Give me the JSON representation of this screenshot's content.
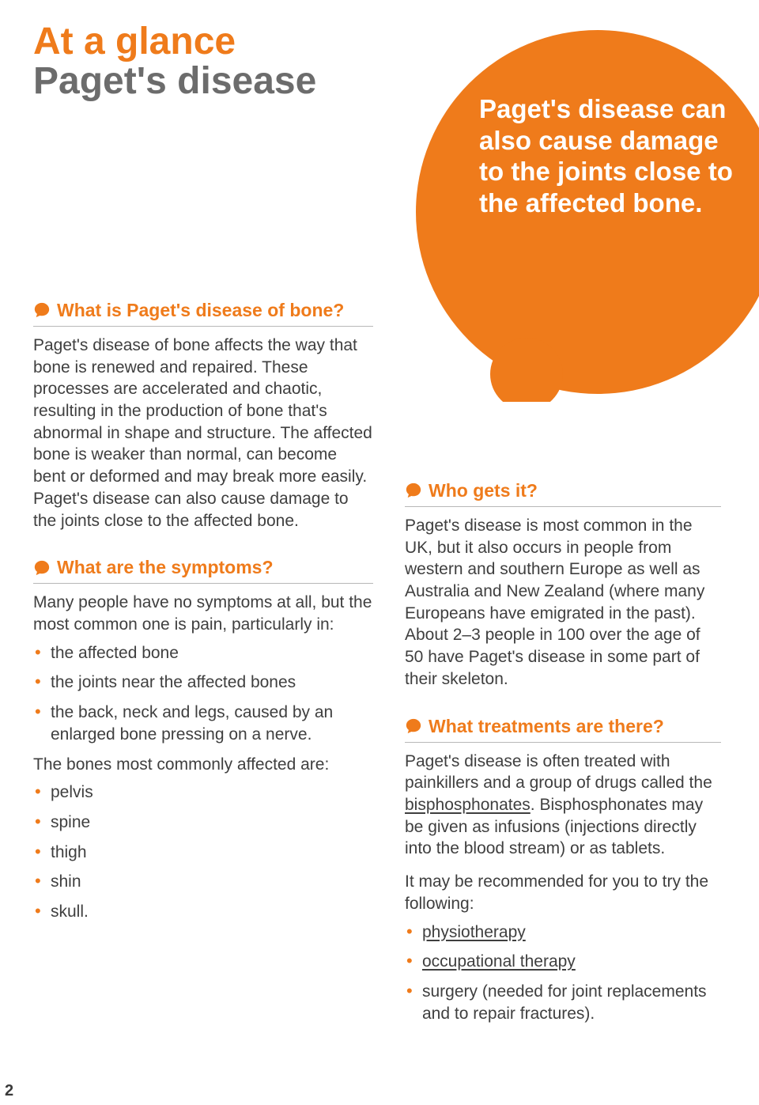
{
  "colors": {
    "accent": "#ef7b1b",
    "heading_gray": "#6c6c6c",
    "body_text": "#3f3f3f",
    "bullet": "#ef7b1b",
    "rule": "#b8b8b8",
    "callout_bg": "#ef7b1b",
    "callout_text": "#ffffff",
    "background": "#ffffff"
  },
  "typography": {
    "title_fontsize": 48,
    "heading_fontsize": 23,
    "body_fontsize": 21,
    "callout_fontsize": 33,
    "pagenum_fontsize": 20
  },
  "title": {
    "line1": "At a glance",
    "line2": "Paget's disease"
  },
  "callout": {
    "text": "Paget's disease can also cause damage to the joints close to the affected bone."
  },
  "left": {
    "s1": {
      "heading": "What is Paget's disease of bone?",
      "body": "Paget's disease of bone affects the way that bone is renewed and repaired. These processes are accelerated and chaotic, resulting in the production of bone that's abnormal in shape and structure. The affected bone is weaker than normal, can become bent or deformed and may break more easily. Paget's disease can also cause damage to the joints close to the affected bone."
    },
    "s2": {
      "heading": "What are the symptoms?",
      "intro": "Many people have no symptoms at all, but the most common one is pain, particularly in:",
      "list1": [
        "the affected bone",
        "the joints near the affected bones",
        "the back, neck and legs, caused by an enlarged bone pressing on a nerve."
      ],
      "mid": "The bones most commonly affected are:",
      "list2": [
        "pelvis",
        "spine",
        "thigh",
        "shin",
        "skull."
      ]
    }
  },
  "right": {
    "s3": {
      "heading": "Who gets it?",
      "body": "Paget's disease is most common in the UK, but it also occurs in people from western and southern Europe as well as Australia and New Zealand (where many Europeans have emigrated in the past). About 2–3 people in 100 over the age of 50 have Paget's disease in some part of their skeleton."
    },
    "s4": {
      "heading": "What treatments are there?",
      "body_pre": "Paget's disease is often treated with painkillers and a group of drugs called the ",
      "link1": "bisphosphonates",
      "body_post": ". Bisphosphonates may be given as infusions (injections directly into the blood stream) or as tablets.",
      "body2": "It may be recommended for you to try the following:",
      "list": [
        {
          "text": "physiotherapy",
          "link": true
        },
        {
          "text": "occupational therapy",
          "link": true
        },
        {
          "text": "surgery (needed for joint replacements and to repair fractures).",
          "link": false
        }
      ]
    }
  },
  "page_number": "2"
}
